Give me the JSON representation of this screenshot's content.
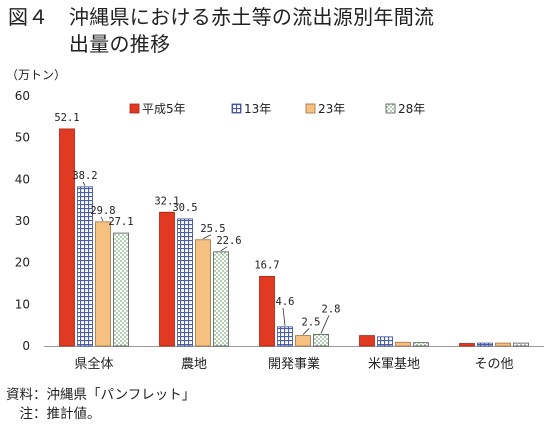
{
  "title": "図４　沖縄県における赤土等の流出源別年間流\n　　　出量の推移",
  "unit_label": "（万トン）",
  "notes": {
    "source": "資料：沖縄県「パンフレット」",
    "note": "　注：推計値。"
  },
  "chart_data": {
    "type": "bar",
    "title": "沖縄県における赤土等の流出源別年間流出量の推移",
    "ylabel": "（万トン）",
    "xlabel": "",
    "ylim": [
      0,
      60
    ],
    "yticks": [
      0,
      10,
      20,
      30,
      40,
      50,
      60
    ],
    "grid": false,
    "legend_position": "top",
    "categories": [
      "県全体",
      "農地",
      "開発事業",
      "米軍基地",
      "その他"
    ],
    "series": [
      {
        "name": "平成5年",
        "values": [
          52.1,
          32.1,
          16.7,
          2.5,
          0.6
        ],
        "labels": [
          "52.1",
          "32.1",
          "16.7",
          null,
          null
        ],
        "color": "#e03a22",
        "pattern": "solid"
      },
      {
        "name": "13年",
        "values": [
          38.2,
          30.5,
          4.6,
          2.2,
          0.7
        ],
        "labels": [
          "38.2",
          "30.5",
          "4.6",
          null,
          null
        ],
        "color": "#5b6fb5",
        "pattern": "grid"
      },
      {
        "name": "23年",
        "values": [
          29.8,
          25.5,
          2.5,
          0.9,
          0.7
        ],
        "labels": [
          "29.8",
          "25.5",
          "2.5",
          null,
          null
        ],
        "color": "#f6c080",
        "pattern": "solid"
      },
      {
        "name": "28年",
        "values": [
          27.1,
          22.6,
          2.8,
          0.8,
          0.7
        ],
        "labels": [
          "27.1",
          "22.6",
          "2.8",
          null,
          null
        ],
        "color": "#6fae6f",
        "pattern": "dots"
      }
    ]
  }
}
